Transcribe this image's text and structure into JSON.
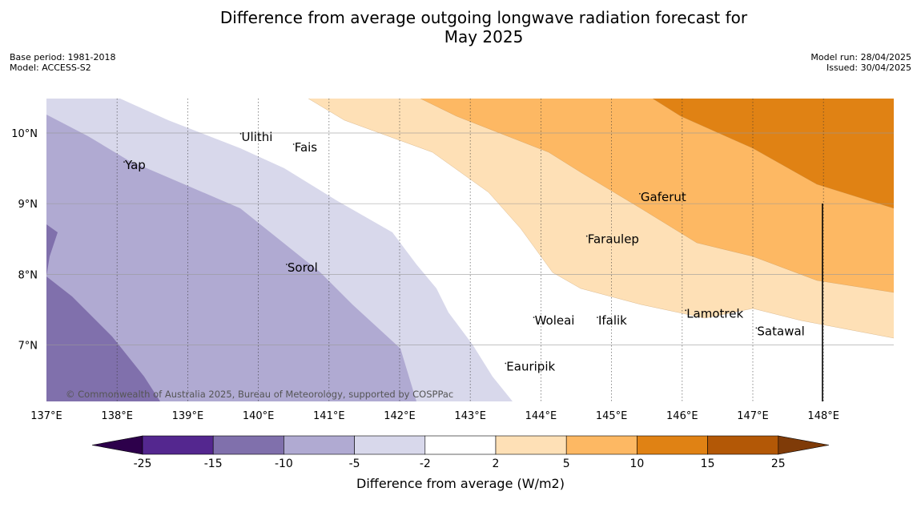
{
  "title_line1": "Difference from average outgoing longwave radiation forecast for",
  "title_line2": "May 2025",
  "base_period": "Base period: 1981-2018",
  "model": "Model: ACCESS-S2",
  "model_run": "Model run: 28/04/2025",
  "issued": "Issued: 30/04/2025",
  "copyright": "© Commonwealth of Australia 2025, Bureau of Meteorology, supported by COSPPac",
  "colorbar_label": "Difference from average (W/m2)",
  "map": {
    "lon_range": [
      137,
      149
    ],
    "lat_range": [
      6.2,
      10.5
    ],
    "lon_ticks": [
      {
        "value": 137,
        "label": "137°E"
      },
      {
        "value": 138,
        "label": "138°E"
      },
      {
        "value": 139,
        "label": "139°E"
      },
      {
        "value": 140,
        "label": "140°E"
      },
      {
        "value": 141,
        "label": "141°E"
      },
      {
        "value": 142,
        "label": "142°E"
      },
      {
        "value": 143,
        "label": "143°E"
      },
      {
        "value": 144,
        "label": "144°E"
      },
      {
        "value": 145,
        "label": "145°E"
      },
      {
        "value": 146,
        "label": "146°E"
      },
      {
        "value": 147,
        "label": "147°E"
      },
      {
        "value": 148,
        "label": "148°E"
      }
    ],
    "lat_ticks": [
      {
        "value": 10,
        "label": "10°N"
      },
      {
        "value": 9,
        "label": "9°N"
      },
      {
        "value": 8,
        "label": "8°N"
      },
      {
        "value": 7,
        "label": "7°N"
      }
    ],
    "islands": [
      {
        "name": "Ulithi",
        "lon": 139.75,
        "lat": 9.9
      },
      {
        "name": "Fais",
        "lon": 140.5,
        "lat": 9.75
      },
      {
        "name": "Yap",
        "lon": 138.1,
        "lat": 9.5
      },
      {
        "name": "Gaferut",
        "lon": 145.4,
        "lat": 9.05
      },
      {
        "name": "Faraulep",
        "lon": 144.65,
        "lat": 8.45
      },
      {
        "name": "Sorol",
        "lon": 140.4,
        "lat": 8.05
      },
      {
        "name": "Lamotrek",
        "lon": 146.05,
        "lat": 7.4
      },
      {
        "name": "Woleai",
        "lon": 143.9,
        "lat": 7.3
      },
      {
        "name": "Ifalik",
        "lon": 144.8,
        "lat": 7.3
      },
      {
        "name": "Satawal",
        "lon": 147.05,
        "lat": 7.15
      },
      {
        "name": "Eauripik",
        "lon": 143.5,
        "lat": 6.65
      }
    ]
  },
  "colorbar": {
    "boundaries": [
      "-25",
      "-15",
      "-10",
      "-5",
      "-2",
      "2",
      "5",
      "10",
      "15",
      "25"
    ],
    "colors": [
      "#54278f",
      "#8070ac",
      "#b0aad2",
      "#d8d8eb",
      "#ffffff",
      "#fee0b6",
      "#fdb863",
      "#e08214",
      "#b35806"
    ],
    "under_color": "#2d004b",
    "over_color": "#7f3b08"
  },
  "colors": {
    "c_m15": "#8070ac",
    "c_m10": "#b0aad2",
    "c_m5": "#d8d8eb",
    "c_p2": "#fee0b6",
    "c_p5": "#fdb863",
    "c_p10": "#e08214"
  }
}
